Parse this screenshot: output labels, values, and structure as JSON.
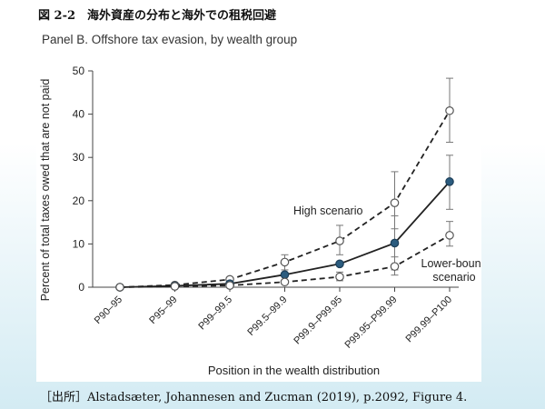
{
  "figure": {
    "title": "図 2-2　海外資産の分布と海外での租税回避",
    "source": "［出所］Alstadsæter, Johannesen and Zucman (2019), p.2092, Figure 4."
  },
  "chart_data": {
    "type": "line",
    "title": "Panel B. Offshore tax evasion, by wealth group",
    "xlabel": "Position in the wealth distribution",
    "ylabel": "Percent of total taxes owed that are not paid",
    "ylim": [
      0,
      50
    ],
    "yticks": [
      0,
      10,
      20,
      30,
      40,
      50
    ],
    "grid": false,
    "categories": [
      "P90–95",
      "P95–99",
      "P99–99.5",
      "P99.5–99.9",
      "P99.9–P99.95",
      "P99.95–P99.99",
      "P99.99–P100"
    ],
    "series": [
      {
        "name": "High scenario",
        "style": "dashed-open",
        "values": [
          0,
          0.5,
          1.8,
          5.8,
          10.7,
          19.5,
          40.8
        ],
        "err_low": [
          null,
          null,
          null,
          4.0,
          7.5,
          13.5,
          33.5
        ],
        "err_high": [
          null,
          null,
          null,
          7.5,
          14.3,
          26.7,
          48.3
        ]
      },
      {
        "name": "",
        "style": "solid-filled",
        "values": [
          0,
          0.3,
          0.8,
          2.9,
          5.4,
          10.2,
          24.4
        ],
        "err_low": [
          null,
          null,
          null,
          null,
          null,
          4.0,
          18.0
        ],
        "err_high": [
          null,
          null,
          null,
          null,
          null,
          16.5,
          30.5
        ]
      },
      {
        "name": "Lower-bound scenario",
        "style": "dashed-open",
        "values": [
          0,
          0.2,
          0.4,
          1.2,
          2.4,
          4.8,
          12.0
        ],
        "err_low": [
          null,
          null,
          null,
          null,
          1.5,
          2.8,
          9.5
        ],
        "err_high": [
          null,
          null,
          null,
          null,
          3.5,
          7.0,
          15.2
        ]
      }
    ],
    "annotations": [
      {
        "series": 0,
        "text": "High scenario"
      },
      {
        "series": 2,
        "lines": [
          "Lower-bound",
          "scenario"
        ]
      }
    ],
    "colors": {
      "line": "#222222",
      "filled_marker": "#2b5c7f",
      "open_marker": "#ffffff"
    }
  }
}
